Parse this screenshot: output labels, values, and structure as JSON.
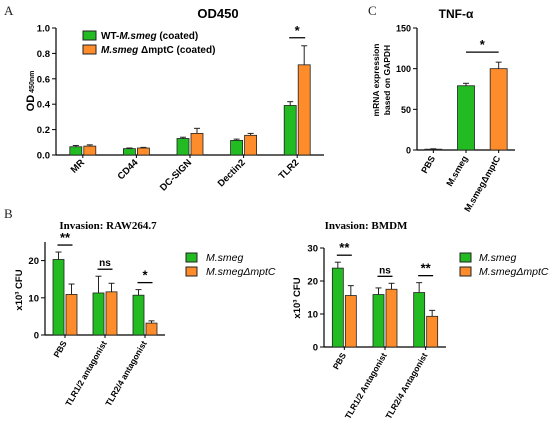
{
  "colors": {
    "green": "#22bb22",
    "orange": "#ff8c2a",
    "edge": "#222222",
    "error": "#222222"
  },
  "panel_letters": {
    "a": "A",
    "b": "B",
    "c": "C"
  },
  "chart_data": [
    {
      "id": "A",
      "type": "bar",
      "title": "OD450",
      "ylabel_main": "OD",
      "ylabel_sub": "450nm",
      "xlabel": "",
      "ylim": [
        0,
        1.0
      ],
      "yticks": [
        "0.0",
        "0.2",
        "0.4",
        "0.6",
        "0.8",
        "1.0"
      ],
      "ytick_values": [
        0,
        0.2,
        0.4,
        0.6,
        0.8,
        1.0
      ],
      "categories": [
        "MR",
        "CD44",
        "DC-SIGN",
        "Dectin2",
        "TLR2"
      ],
      "series": [
        {
          "name_prefix": "WT-",
          "name_italic": "M.smeg",
          "name_suffix": " (coated)",
          "color": "#22bb22",
          "values": [
            0.065,
            0.05,
            0.13,
            0.115,
            0.39
          ],
          "errors": [
            0.01,
            0.005,
            0.01,
            0.01,
            0.03
          ]
        },
        {
          "name_prefix": "",
          "name_italic": "M.smeg",
          "name_suffix": " ΔmptC (coated)",
          "color": "#ff8c2a",
          "values": [
            0.07,
            0.055,
            0.17,
            0.155,
            0.71
          ],
          "errors": [
            0.01,
            0.005,
            0.04,
            0.015,
            0.15
          ]
        }
      ],
      "significance": [
        {
          "category_index": 4,
          "label": "*"
        }
      ],
      "grid": false,
      "legend": "top-left"
    },
    {
      "id": "C",
      "type": "bar",
      "title": "TNF-α",
      "ylabel_line1": "mRNA expression",
      "ylabel_line2": "based on GAPDH",
      "xlabel": "",
      "ylim": [
        0,
        150
      ],
      "yticks": [
        "0",
        "50",
        "100",
        "150"
      ],
      "ytick_values": [
        0,
        50,
        100,
        150
      ],
      "categories": [
        "PBS",
        "M.smeg",
        "M.smegΔmptC"
      ],
      "values": [
        1,
        79,
        100
      ],
      "errors": [
        0.5,
        3,
        8
      ],
      "colors": [
        "#22bb22",
        "#22bb22",
        "#ff8c2a"
      ],
      "significance": [
        {
          "from_index": 1,
          "to_index": 2,
          "label": "*"
        }
      ],
      "grid": false
    },
    {
      "id": "B-left",
      "type": "bar",
      "title": "Invasion: RAW264.7",
      "ylabel": "x10³ CFU",
      "xlabel": "",
      "ylim": [
        0,
        25
      ],
      "yticks": [
        "0",
        "10",
        "20"
      ],
      "ytick_values": [
        0,
        10,
        20
      ],
      "categories": [
        "PBS",
        "TLR1/2 antagonist",
        "TLR2/4 antagonist"
      ],
      "series": [
        {
          "name": "M.smeg",
          "color": "#22bb22",
          "values": [
            20.3,
            11.3,
            10.7
          ],
          "errors": [
            2.0,
            4.5,
            1.5
          ]
        },
        {
          "name": "M.smegΔmptC",
          "color": "#ff8c2a",
          "values": [
            10.9,
            11.6,
            3.2
          ],
          "errors": [
            2.8,
            2.3,
            0.6
          ]
        }
      ],
      "significance": [
        {
          "category_index": 0,
          "label": "**"
        },
        {
          "category_index": 1,
          "label": "ns"
        },
        {
          "category_index": 2,
          "label": "*"
        }
      ],
      "grid": false,
      "legend": "right"
    },
    {
      "id": "B-right",
      "type": "bar",
      "title": "Invasion: BMDM",
      "ylabel": "x10³ CFU",
      "xlabel": "",
      "ylim": [
        0,
        30
      ],
      "yticks": [
        "0",
        "10",
        "20",
        "30"
      ],
      "ytick_values": [
        0,
        10,
        20,
        30
      ],
      "categories": [
        "PBS",
        "TLR1/2 Antagonist",
        "TLR2/4 Antagonist"
      ],
      "series": [
        {
          "name": "M.smeg",
          "color": "#22bb22",
          "values": [
            23.9,
            15.9,
            16.5
          ],
          "errors": [
            1.8,
            2.0,
            3.0
          ]
        },
        {
          "name": "M.smegΔmptC",
          "color": "#ff8c2a",
          "values": [
            15.6,
            17.5,
            9.3
          ],
          "errors": [
            3.0,
            1.8,
            1.8
          ]
        }
      ],
      "significance": [
        {
          "category_index": 0,
          "label": "**"
        },
        {
          "category_index": 1,
          "label": "ns"
        },
        {
          "category_index": 2,
          "label": "**"
        }
      ],
      "grid": false,
      "legend": "right"
    }
  ]
}
